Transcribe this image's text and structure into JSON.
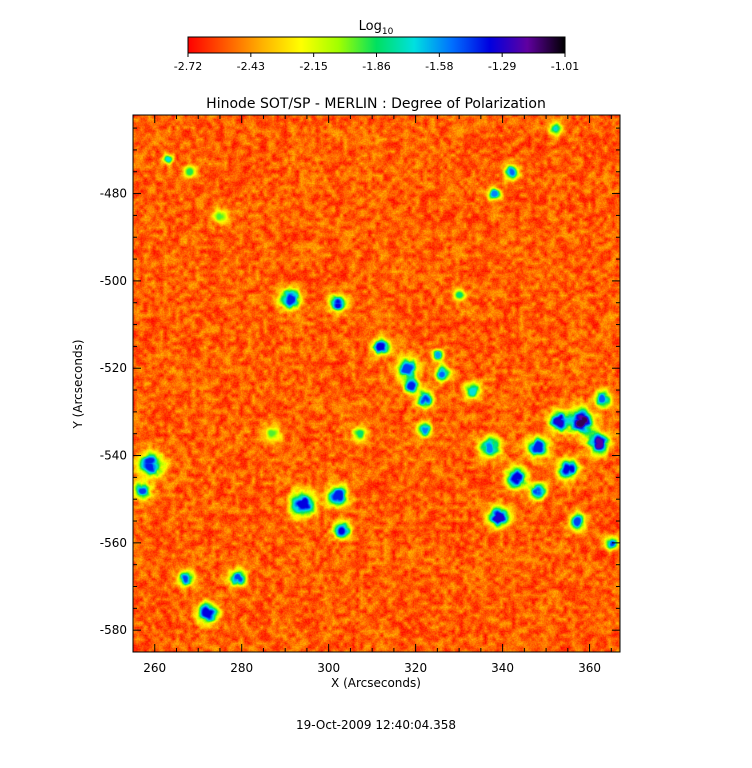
{
  "chart_data": {
    "type": "heatmap",
    "title": "Hinode SOT/SP - MERLIN : Degree of Polarization",
    "xlabel": "X (Arcseconds)",
    "ylabel": "Y (Arcseconds)",
    "xlim": [
      255,
      367
    ],
    "ylim": [
      -585,
      -462
    ],
    "x_ticks": [
      260,
      280,
      300,
      320,
      340,
      360
    ],
    "y_ticks": [
      -480,
      -500,
      -520,
      -540,
      -560,
      -580
    ],
    "colorbar": {
      "label_base": "Log",
      "label_sub": "10",
      "range": [
        -2.72,
        -1.01
      ],
      "ticks": [
        "-2.72",
        "-2.43",
        "-2.15",
        "-1.86",
        "-1.58",
        "-1.29",
        "-1.01"
      ],
      "colormap": [
        "#ff0000",
        "#ff5a00",
        "#ffb400",
        "#ffff00",
        "#a0ff00",
        "#00e060",
        "#00e0e0",
        "#0070ff",
        "#0000e0",
        "#6000a0",
        "#000000"
      ]
    },
    "clusters": [
      {
        "x": 272,
        "y": -576,
        "r": 2.5,
        "v": -1.35
      },
      {
        "x": 291,
        "y": -504,
        "r": 2.5,
        "v": -1.4
      },
      {
        "x": 302,
        "y": -505,
        "r": 2.0,
        "v": -1.3
      },
      {
        "x": 294,
        "y": -551,
        "r": 3.0,
        "v": -1.35
      },
      {
        "x": 302,
        "y": -549,
        "r": 2.5,
        "v": -1.4
      },
      {
        "x": 303,
        "y": -557,
        "r": 2.0,
        "v": -1.35
      },
      {
        "x": 279,
        "y": -568,
        "r": 2.0,
        "v": -1.45
      },
      {
        "x": 267,
        "y": -568,
        "r": 1.8,
        "v": -1.45
      },
      {
        "x": 259,
        "y": -542,
        "r": 3.0,
        "v": -1.4
      },
      {
        "x": 257,
        "y": -548,
        "r": 2.0,
        "v": -1.45
      },
      {
        "x": 312,
        "y": -515,
        "r": 2.0,
        "v": -1.35
      },
      {
        "x": 318,
        "y": -520,
        "r": 2.5,
        "v": -1.45
      },
      {
        "x": 322,
        "y": -527,
        "r": 2.0,
        "v": -1.4
      },
      {
        "x": 326,
        "y": -521,
        "r": 1.8,
        "v": -1.5
      },
      {
        "x": 322,
        "y": -534,
        "r": 1.8,
        "v": -1.55
      },
      {
        "x": 343,
        "y": -545,
        "r": 2.5,
        "v": -1.35
      },
      {
        "x": 348,
        "y": -538,
        "r": 2.5,
        "v": -1.4
      },
      {
        "x": 353,
        "y": -532,
        "r": 2.5,
        "v": -1.3
      },
      {
        "x": 358,
        "y": -532,
        "r": 3.0,
        "v": -1.1
      },
      {
        "x": 362,
        "y": -537,
        "r": 2.5,
        "v": -1.2
      },
      {
        "x": 355,
        "y": -543,
        "r": 2.5,
        "v": -1.35
      },
      {
        "x": 348,
        "y": -548,
        "r": 2.0,
        "v": -1.45
      },
      {
        "x": 339,
        "y": -554,
        "r": 2.5,
        "v": -1.3
      },
      {
        "x": 357,
        "y": -555,
        "r": 2.0,
        "v": -1.45
      },
      {
        "x": 337,
        "y": -538,
        "r": 2.5,
        "v": -1.55
      },
      {
        "x": 363,
        "y": -527,
        "r": 2.0,
        "v": -1.5
      },
      {
        "x": 342,
        "y": -475,
        "r": 1.8,
        "v": -1.5
      },
      {
        "x": 338,
        "y": -480,
        "r": 1.5,
        "v": -1.55
      },
      {
        "x": 352,
        "y": -465,
        "r": 1.5,
        "v": -1.6
      },
      {
        "x": 319,
        "y": -524,
        "r": 1.8,
        "v": -1.4
      },
      {
        "x": 365,
        "y": -560,
        "r": 1.5,
        "v": -1.45
      },
      {
        "x": 333,
        "y": -525,
        "r": 2.0,
        "v": -1.7
      },
      {
        "x": 325,
        "y": -517,
        "r": 1.5,
        "v": -1.6
      },
      {
        "x": 307,
        "y": -535,
        "r": 1.8,
        "v": -1.85
      },
      {
        "x": 268,
        "y": -475,
        "r": 1.5,
        "v": -1.9
      },
      {
        "x": 275,
        "y": -485,
        "r": 1.8,
        "v": -1.95
      },
      {
        "x": 287,
        "y": -535,
        "r": 2.0,
        "v": -1.95
      },
      {
        "x": 263,
        "y": -472,
        "r": 1.2,
        "v": -1.7
      },
      {
        "x": 330,
        "y": -503,
        "r": 1.5,
        "v": -1.85
      }
    ]
  },
  "footer": {
    "timestamp": "19-Oct-2009 12:40:04.358"
  }
}
